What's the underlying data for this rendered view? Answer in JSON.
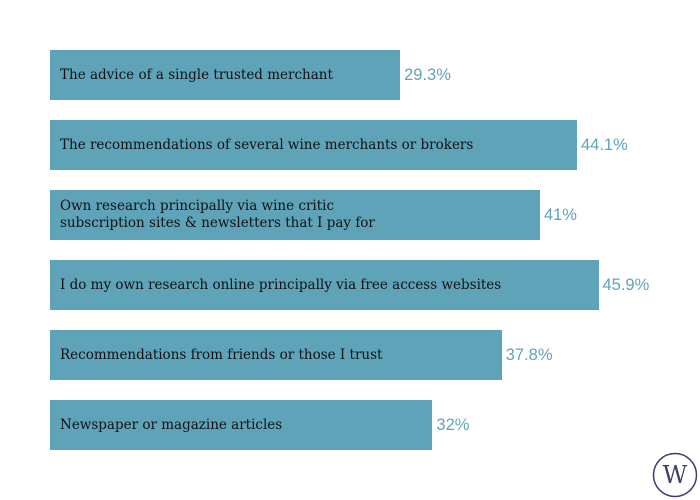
{
  "chart_data": {
    "type": "bar",
    "orientation": "horizontal",
    "title": "",
    "xlabel": "",
    "ylabel": "",
    "unit": "%",
    "xlim": [
      0,
      100
    ],
    "grid": false,
    "categories": [
      "The advice of a single trusted merchant",
      "The recommendations of several wine merchants or brokers",
      "Own research principally via wine critic\nsubscription sites & newsletters that I pay for",
      "I do my own research online principally via free access websites",
      "Recommendations from friends or those I trust",
      "Newspaper or magazine articles"
    ],
    "values": [
      29.3,
      44.1,
      41,
      45.9,
      37.8,
      32
    ],
    "value_labels": [
      "29.3%",
      "44.1%",
      "41%",
      "45.9%",
      "37.8%",
      "32%"
    ],
    "bar_color": "#5fa3b9",
    "label_color": "#5fa3b9"
  },
  "logo": {
    "text": "W",
    "color": "#3d3f6b"
  }
}
